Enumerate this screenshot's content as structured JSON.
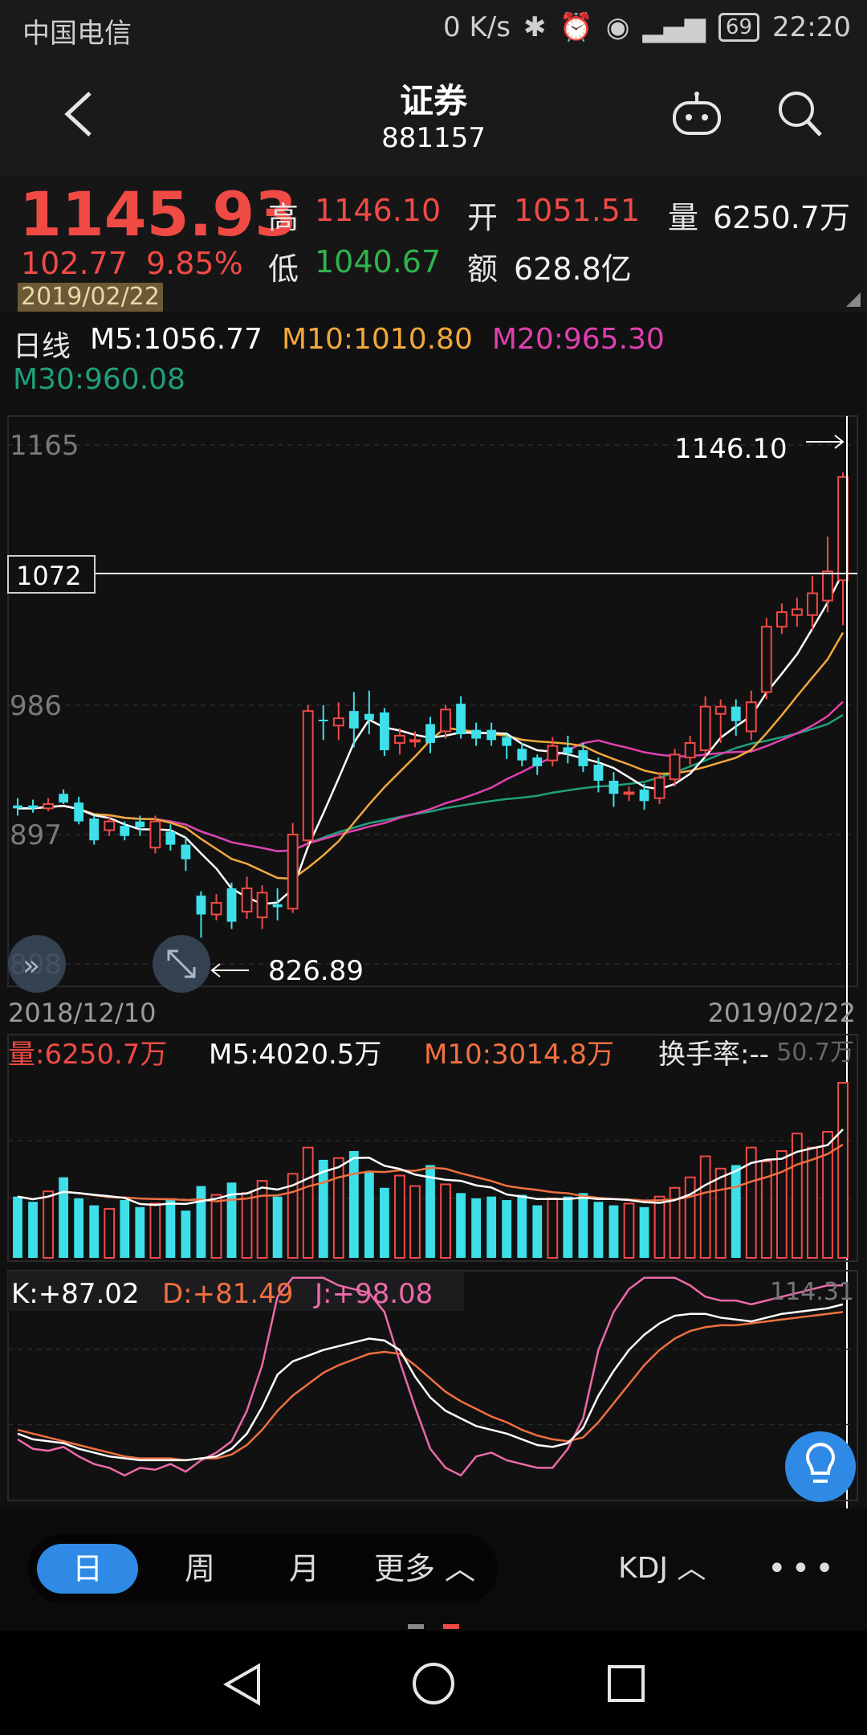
{
  "status": {
    "carrier": "中国电信",
    "speed": "0 K/s",
    "battery": "69",
    "time": "22:20"
  },
  "header": {
    "title": "证券",
    "code": "881157"
  },
  "quote": {
    "price": "1145.93",
    "change": "102.77",
    "change_pct": "9.85%",
    "high_label": "高",
    "high": "1146.10",
    "open_label": "开",
    "open": "1051.51",
    "volume_label": "量",
    "volume": "6250.7万",
    "low_label": "低",
    "low": "1040.67",
    "amount_label": "额",
    "amount": "628.8亿",
    "date": "2019/02/22"
  },
  "ma_legend": {
    "period": "日线",
    "m5": "M5:1056.77",
    "m10": "M10:1010.80",
    "m20": "M20:965.30",
    "m30": "M30:960.08"
  },
  "main_chart": {
    "y_ticks": [
      "1165",
      "986",
      "897",
      "808"
    ],
    "crosshair_value": "1072",
    "max_label": "1146.10",
    "min_label": "826.89",
    "start_date": "2018/12/10",
    "end_date": "2019/02/22"
  },
  "volume_legend": {
    "vol": "量:6250.7万",
    "m5": "M5:4020.5万",
    "m10": "M10:3014.8万",
    "turnover": "换手率:--",
    "axis_max": "50.7万"
  },
  "kdj_legend": {
    "k": "K:+87.02",
    "d": "D:+81.49",
    "j": "J:+98.08",
    "axis_max": "114.31"
  },
  "bottom_tabs": {
    "day": "日",
    "week": "周",
    "month": "月",
    "more": "更多",
    "indicator": "KDJ"
  },
  "colors": {
    "up": "#f04a45",
    "down": "#3de0e8",
    "m5": "#ffffff",
    "m10": "#f2a93b",
    "m20": "#e040b0",
    "m30": "#1fa07a",
    "accent": "#2f8ae6"
  },
  "chart_data": {
    "type": "candlestick",
    "x_start": "2018/12/10",
    "x_end": "2019/02/22",
    "ylim": [
      808,
      1165
    ],
    "candles": [
      [
        917,
        915,
        910,
        922
      ],
      [
        917,
        915,
        912,
        921
      ],
      [
        915,
        918,
        913,
        922
      ],
      [
        925,
        919,
        918,
        928
      ],
      [
        919,
        906,
        904,
        923
      ],
      [
        908,
        893,
        890,
        910
      ],
      [
        900,
        906,
        896,
        910
      ],
      [
        903,
        896,
        893,
        906
      ],
      [
        906,
        902,
        896,
        910
      ],
      [
        888,
        906,
        884,
        910
      ],
      [
        899,
        890,
        886,
        904
      ],
      [
        890,
        880,
        872,
        895
      ],
      [
        855,
        842,
        826,
        858
      ],
      [
        842,
        850,
        838,
        856
      ],
      [
        860,
        837,
        832,
        864
      ],
      [
        844,
        860,
        839,
        868
      ],
      [
        840,
        857,
        832,
        862
      ],
      [
        849,
        847,
        838,
        860
      ],
      [
        846,
        897,
        843,
        905
      ],
      [
        893,
        982,
        889,
        986
      ],
      [
        976,
        975,
        962,
        986
      ],
      [
        972,
        977,
        962,
        988
      ],
      [
        982,
        970,
        957,
        995
      ],
      [
        980,
        976,
        966,
        996
      ],
      [
        981,
        955,
        951,
        984
      ],
      [
        960,
        965,
        952,
        970
      ],
      [
        962,
        962,
        957,
        968
      ],
      [
        973,
        960,
        953,
        978
      ],
      [
        968,
        983,
        963,
        986
      ],
      [
        987,
        966,
        963,
        992
      ],
      [
        969,
        963,
        958,
        974
      ],
      [
        969,
        962,
        958,
        974
      ],
      [
        964,
        958,
        949,
        966
      ],
      [
        956,
        948,
        944,
        960
      ],
      [
        950,
        944,
        938,
        952
      ],
      [
        948,
        958,
        944,
        964
      ],
      [
        957,
        953,
        946,
        965
      ],
      [
        955,
        944,
        940,
        960
      ],
      [
        945,
        934,
        926,
        950
      ],
      [
        934,
        925,
        916,
        940
      ],
      [
        925,
        926,
        920,
        930
      ],
      [
        928,
        920,
        914,
        932
      ],
      [
        922,
        936,
        918,
        940
      ],
      [
        935,
        952,
        930,
        956
      ],
      [
        950,
        960,
        945,
        965
      ],
      [
        955,
        985,
        950,
        992
      ],
      [
        980,
        985,
        960,
        990
      ],
      [
        985,
        975,
        965,
        990
      ],
      [
        968,
        988,
        962,
        996
      ],
      [
        995,
        1040,
        990,
        1046
      ],
      [
        1040,
        1050,
        1035,
        1056
      ],
      [
        1048,
        1052,
        1040,
        1060
      ],
      [
        1048,
        1063,
        1038,
        1075
      ],
      [
        1058,
        1078,
        1050,
        1102
      ],
      [
        1072,
        1143,
        1041,
        1146
      ]
    ],
    "volume": [
      35,
      32,
      38,
      46,
      34,
      30,
      28,
      33,
      29,
      31,
      34,
      27,
      41,
      36,
      43,
      37,
      44,
      35,
      48,
      63,
      56,
      57,
      61,
      49,
      40,
      47,
      41,
      53,
      42,
      37,
      34,
      35,
      33,
      36,
      30,
      34,
      35,
      37,
      32,
      30,
      31,
      29,
      35,
      40,
      46,
      58,
      51,
      53,
      63,
      55,
      61,
      71,
      63,
      72,
      100
    ],
    "kdj": {
      "k": [
        36,
        33,
        32,
        31,
        28,
        26,
        24,
        23,
        22,
        22,
        22,
        22,
        23,
        24,
        28,
        36,
        50,
        67,
        74,
        77,
        80,
        82,
        84,
        86,
        85,
        80,
        66,
        55,
        48,
        44,
        40,
        38,
        36,
        33,
        30,
        29,
        31,
        39,
        56,
        69,
        80,
        88,
        94,
        98,
        99,
        99,
        97,
        96,
        95,
        97,
        99,
        100,
        101,
        102,
        104
      ],
      "d": [
        38,
        36,
        34,
        32,
        30,
        28,
        26,
        24,
        23,
        23,
        23,
        22,
        23,
        23,
        25,
        30,
        38,
        48,
        56,
        62,
        68,
        72,
        75,
        78,
        79,
        78,
        72,
        65,
        58,
        53,
        49,
        45,
        42,
        38,
        35,
        33,
        32,
        34,
        42,
        52,
        62,
        72,
        80,
        86,
        90,
        92,
        93,
        93,
        94,
        95,
        96,
        97,
        98,
        99,
        100
      ],
      "j": [
        33,
        28,
        27,
        29,
        24,
        20,
        18,
        14,
        18,
        17,
        20,
        16,
        22,
        26,
        32,
        48,
        72,
        108,
        118,
        120,
        118,
        114,
        112,
        110,
        100,
        74,
        50,
        28,
        18,
        14,
        24,
        26,
        22,
        20,
        18,
        18,
        28,
        44,
        80,
        100,
        112,
        118,
        120,
        118,
        114,
        108,
        106,
        106,
        104,
        106,
        108,
        110,
        112,
        114,
        114
      ]
    }
  }
}
